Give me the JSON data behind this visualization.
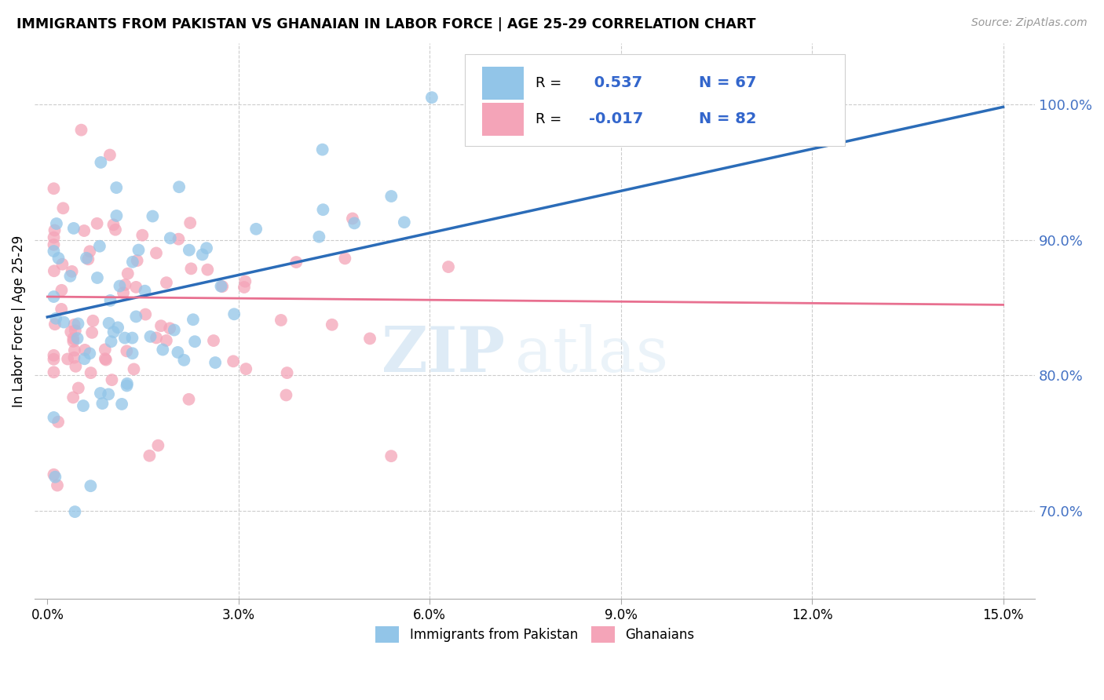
{
  "title": "IMMIGRANTS FROM PAKISTAN VS GHANAIAN IN LABOR FORCE | AGE 25-29 CORRELATION CHART",
  "source": "Source: ZipAtlas.com",
  "xlabel_vals": [
    0.0,
    0.03,
    0.06,
    0.09,
    0.12,
    0.15
  ],
  "ylabel_label": "In Labor Force | Age 25-29",
  "ylabel_vals": [
    0.7,
    0.8,
    0.9,
    1.0
  ],
  "xlim": [
    -0.002,
    0.155
  ],
  "ylim": [
    0.635,
    1.045
  ],
  "R_pakistan": 0.537,
  "N_pakistan": 67,
  "R_ghanaian": -0.017,
  "N_ghanaian": 82,
  "color_pakistan": "#92C5E8",
  "color_ghanaian": "#F4A4B8",
  "trendline_pakistan_color": "#2B6CB8",
  "trendline_ghanaian_color": "#E87090",
  "watermark_zip": "ZIP",
  "watermark_atlas": "atlas",
  "trend_pak_x0": 0.0,
  "trend_pak_y0": 0.843,
  "trend_pak_x1": 0.15,
  "trend_pak_y1": 0.998,
  "trend_gha_x0": 0.0,
  "trend_gha_y0": 0.858,
  "trend_gha_x1": 0.15,
  "trend_gha_y1": 0.852
}
